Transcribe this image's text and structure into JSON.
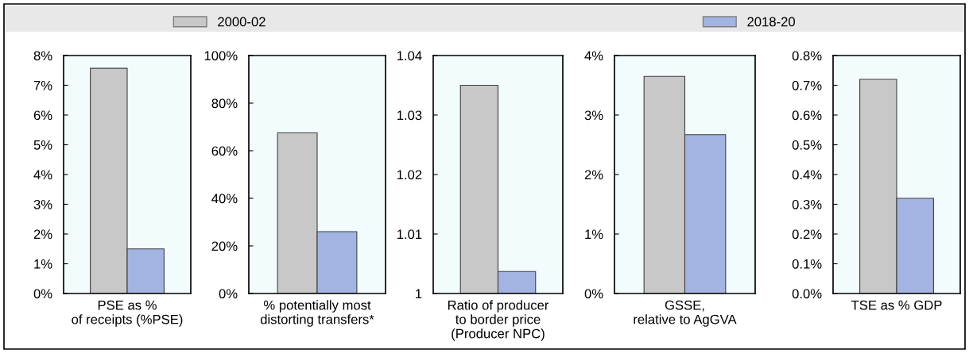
{
  "chart_data": [
    {
      "type": "bar",
      "categories": [
        "PSE as %\nof receipts (%PSE)"
      ],
      "legend": "top",
      "ylim": [
        0,
        8
      ],
      "yticks": [
        {
          "value": 0,
          "label": "0%"
        },
        {
          "value": 1,
          "label": "1%"
        },
        {
          "value": 2,
          "label": "2%"
        },
        {
          "value": 3,
          "label": "3%"
        },
        {
          "value": 4,
          "label": "4%"
        },
        {
          "value": 5,
          "label": "5%"
        },
        {
          "value": 6,
          "label": "6%"
        },
        {
          "value": 7,
          "label": "7%"
        },
        {
          "value": 8,
          "label": "8%"
        }
      ],
      "series": [
        {
          "name": "2000-02",
          "color": "#c8c8c8",
          "values": [
            7.57
          ]
        },
        {
          "name": "2018-20",
          "color": "#a3b4e2",
          "values": [
            1.5
          ]
        }
      ]
    },
    {
      "type": "bar",
      "categories": [
        "% potentially most\ndistorting transfers*"
      ],
      "ylim": [
        0,
        100
      ],
      "yticks": [
        {
          "value": 0,
          "label": "0%"
        },
        {
          "value": 20,
          "label": "20%"
        },
        {
          "value": 40,
          "label": "40%"
        },
        {
          "value": 60,
          "label": "60%"
        },
        {
          "value": 80,
          "label": "80%"
        },
        {
          "value": 100,
          "label": "100%"
        }
      ],
      "series": [
        {
          "color": "#c8c8c8",
          "values": [
            67.5
          ]
        },
        {
          "color": "#a3b4e2",
          "values": [
            26
          ]
        }
      ]
    },
    {
      "type": "bar",
      "categories": [
        "Ratio of producer\nto border price\n(Producer NPC)"
      ],
      "ylim": [
        1,
        1.04
      ],
      "yticks": [
        1,
        1.01,
        1.02,
        1.03,
        1.04
      ],
      "series": [
        {
          "color": "#c8c8c8",
          "values": [
            1.035
          ]
        },
        {
          "color": "#a3b4e2",
          "values": [
            1.0037
          ]
        }
      ]
    },
    {
      "type": "bar",
      "categories": [
        "GSSE,\nrelative to AgGVA"
      ],
      "ylim": [
        0,
        4
      ],
      "yticks": [
        {
          "value": 0,
          "label": "0%"
        },
        {
          "value": 1,
          "label": "1%"
        },
        {
          "value": 2,
          "label": "2%"
        },
        {
          "value": 3,
          "label": "3%"
        },
        {
          "value": 4,
          "label": "4%"
        }
      ],
      "series": [
        {
          "color": "#c8c8c8",
          "values": [
            3.65
          ]
        },
        {
          "color": "#a3b4e2",
          "values": [
            2.67
          ]
        }
      ]
    },
    {
      "type": "bar",
      "categories": [
        "TSE as % GDP"
      ],
      "ylim": [
        0,
        0.8
      ],
      "yticks": [
        {
          "value": 0,
          "label": "0.0%"
        },
        {
          "value": 0.1,
          "label": "0.1%"
        },
        {
          "value": 0.2,
          "label": "0.2%"
        },
        {
          "value": 0.3,
          "label": "0.3%"
        },
        {
          "value": 0.4,
          "label": "0.4%"
        },
        {
          "value": 0.5,
          "label": "0.5%"
        },
        {
          "value": 0.6,
          "label": "0.6%"
        },
        {
          "value": 0.7,
          "label": "0.7%"
        },
        {
          "value": 0.8,
          "label": "0.8%"
        }
      ],
      "series": [
        {
          "color": "#c8c8c8",
          "values": [
            0.72
          ]
        },
        {
          "color": "#a3b4e2",
          "values": [
            0.32
          ]
        }
      ]
    }
  ]
}
